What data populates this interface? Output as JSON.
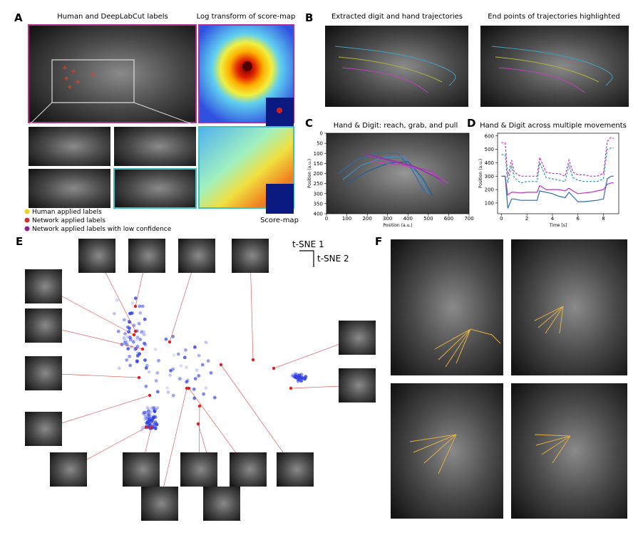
{
  "panels": {
    "a": {
      "label": "A",
      "title_left": "Human and DeepLabCut labels",
      "title_right": "Log transform of score-map",
      "scoremap": "Score-map",
      "legend": [
        "Human applied labels",
        "Network applied labels",
        "Network applied labels with low confidence"
      ]
    },
    "b": {
      "label": "B",
      "title_left": "Extracted digit and hand trajectories",
      "title_right": "End points of trajectories highlighted"
    },
    "c": {
      "label": "C"
    },
    "d": {
      "label": "D"
    },
    "e": {
      "label": "E",
      "axis1": "t-SNE 1",
      "axis2": "t-SNE 2"
    },
    "f": {
      "label": "F"
    }
  },
  "chart_data": [
    {
      "type": "line",
      "title": "Hand & Digit: reach, grab, and pull",
      "xlabel": "Position (a.u.)",
      "ylabel": "Position (a.u.)",
      "xlim": [
        0,
        700
      ],
      "ylim": [
        400,
        0
      ],
      "xticks": [
        0,
        100,
        200,
        300,
        400,
        500,
        600,
        700
      ],
      "yticks": [
        0,
        50,
        100,
        150,
        200,
        250,
        300,
        350,
        400
      ],
      "series": [
        {
          "color": "#2b6cb0",
          "x": [
            60,
            150,
            250,
            350,
            420,
            480
          ],
          "values": [
            200,
            130,
            100,
            100,
            180,
            290
          ]
        },
        {
          "color": "#3a8fc7",
          "x": [
            80,
            170,
            280,
            380,
            450,
            500
          ],
          "values": [
            230,
            160,
            120,
            115,
            200,
            300
          ]
        },
        {
          "color": "#1f5fa0",
          "x": [
            100,
            200,
            300,
            400,
            470,
            520
          ],
          "values": [
            250,
            190,
            150,
            140,
            220,
            310
          ]
        },
        {
          "color": "#a43fb0",
          "x": [
            200,
            280,
            360,
            440,
            520,
            580
          ],
          "values": [
            110,
            130,
            150,
            170,
            190,
            260
          ]
        },
        {
          "color": "#c040c0",
          "x": [
            220,
            300,
            380,
            460,
            540,
            600
          ],
          "values": [
            140,
            150,
            160,
            180,
            210,
            250
          ]
        },
        {
          "color": "#8a30a0",
          "x": [
            180,
            260,
            340,
            420,
            500,
            560
          ],
          "values": [
            100,
            120,
            140,
            160,
            200,
            230
          ]
        }
      ]
    },
    {
      "type": "line",
      "title": "Hand & Digit across multiple movements",
      "xlabel": "Time [s]",
      "ylabel": "Position (a.u.)",
      "xlim": [
        -0.3,
        9.2
      ],
      "ylim": [
        20,
        620
      ],
      "xticks": [
        0,
        2,
        4,
        6,
        8
      ],
      "yticks": [
        100,
        200,
        300,
        400,
        500,
        600
      ],
      "x": [
        0,
        0.3,
        0.5,
        0.8,
        1,
        1.5,
        2,
        2.8,
        3,
        3.5,
        4,
        4.5,
        5,
        5.3,
        5.6,
        6,
        6.5,
        7,
        7.5,
        8,
        8.3,
        8.6,
        8.8
      ],
      "series": [
        {
          "color": "#c030c0",
          "style": "dashed",
          "values": [
            550,
            550,
            300,
            420,
            330,
            300,
            300,
            300,
            440,
            330,
            320,
            320,
            300,
            420,
            330,
            310,
            310,
            300,
            300,
            320,
            560,
            590,
            580
          ]
        },
        {
          "color": "#2a9aa0",
          "style": "dashed",
          "values": [
            460,
            460,
            250,
            380,
            290,
            250,
            260,
            260,
            400,
            290,
            280,
            270,
            260,
            380,
            290,
            270,
            260,
            260,
            260,
            280,
            500,
            510,
            510
          ]
        },
        {
          "color": "#c030c0",
          "style": "solid",
          "values": [
            300,
            300,
            160,
            180,
            180,
            175,
            180,
            180,
            230,
            200,
            200,
            200,
            190,
            210,
            190,
            170,
            175,
            180,
            190,
            200,
            240,
            250,
            250
          ]
        },
        {
          "color": "#2b6cb0",
          "style": "solid",
          "values": [
            300,
            300,
            60,
            130,
            130,
            120,
            120,
            120,
            190,
            180,
            170,
            150,
            140,
            180,
            150,
            110,
            110,
            115,
            120,
            130,
            280,
            300,
            300
          ]
        }
      ]
    }
  ]
}
